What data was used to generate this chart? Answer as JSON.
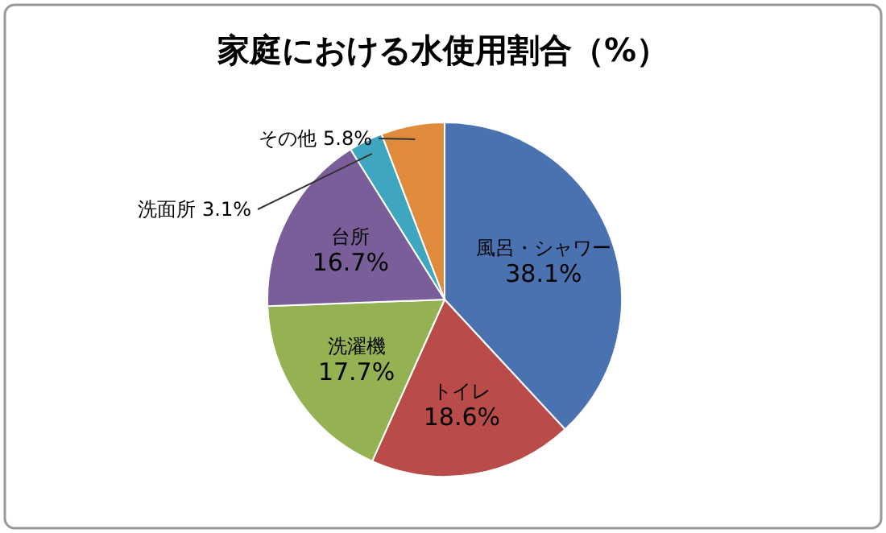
{
  "chart_data": {
    "type": "pie",
    "title": "家庭における水使用割合（%）",
    "categories": [
      "風呂・シャワー",
      "トイレ",
      "洗濯機",
      "台所",
      "洗面所",
      "その他"
    ],
    "values": [
      38.1,
      18.6,
      17.7,
      16.7,
      3.1,
      5.8
    ],
    "value_labels": [
      "38.1%",
      "18.6%",
      "17.7%",
      "16.7%",
      "3.1%",
      "5.8%"
    ],
    "colors": [
      "#4a72b0",
      "#b94b48",
      "#94b251",
      "#7a5e99",
      "#3ea6bf",
      "#e08a3c"
    ],
    "legend": false
  }
}
